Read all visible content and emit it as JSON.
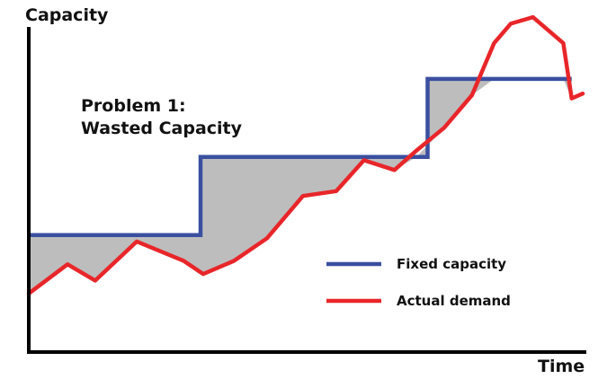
{
  "chart_data": {
    "type": "line",
    "title": "",
    "ylabel": "Capacity",
    "xlabel": "Time",
    "xlim": [
      0,
      100
    ],
    "ylim": [
      0,
      100
    ],
    "grid": false,
    "legend_placement": "bottom-right",
    "annotation": {
      "lines": [
        "Problem 1:",
        "Wasted Capacity"
      ]
    },
    "shaded_area": {
      "meaning": "gap between fixed capacity and actual demand",
      "color": "#bdbdbd"
    },
    "series": [
      {
        "name": "Fixed capacity",
        "color": "#3a4fa0",
        "step": true,
        "x": [
          0,
          31,
          31,
          72,
          72,
          98
        ],
        "y": [
          36,
          36,
          60,
          60,
          84,
          84
        ]
      },
      {
        "name": "Actual demand",
        "color": "#e8262a",
        "x": [
          0,
          7,
          12,
          19.5,
          28,
          31.5,
          37,
          43,
          49.5,
          55.5,
          60.5,
          66,
          70,
          75,
          80,
          84,
          87,
          91,
          96.5,
          98,
          100
        ],
        "y": [
          18,
          27,
          22,
          34,
          28,
          24,
          28,
          35,
          48,
          49.5,
          59,
          56,
          62,
          69,
          79,
          95,
          101,
          103,
          95,
          78,
          79.5
        ]
      }
    ]
  }
}
